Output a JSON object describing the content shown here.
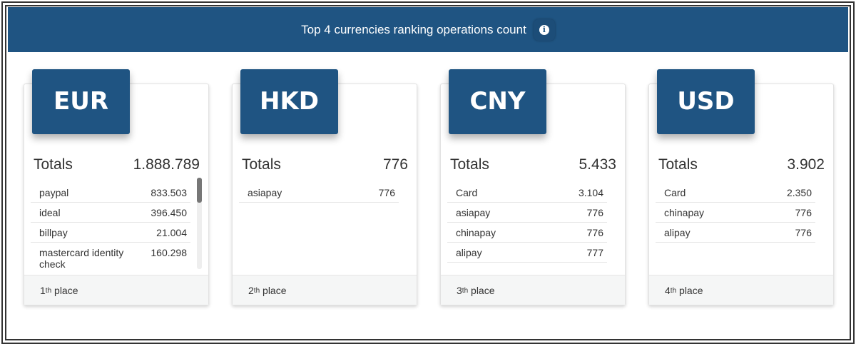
{
  "header": {
    "title": "Top 4 currencies ranking operations count",
    "info_icon": "info-circle-icon"
  },
  "colors": {
    "brand": "#1f5482",
    "footer_bg": "#f5f6f6"
  },
  "cards": [
    {
      "currency": "EUR",
      "totals_label": "Totals",
      "total": "1.888.789",
      "items": [
        {
          "name": "paypal",
          "value": "833.503"
        },
        {
          "name": "ideal",
          "value": "396.450"
        },
        {
          "name": "billpay",
          "value": "21.004"
        },
        {
          "name": "mastercard identity check",
          "value": "160.298"
        }
      ],
      "place_num": "1",
      "place_suffix": "th",
      "place_word": "place"
    },
    {
      "currency": "HKD",
      "totals_label": "Totals",
      "total": "776",
      "items": [
        {
          "name": "asiapay",
          "value": "776"
        }
      ],
      "place_num": "2",
      "place_suffix": "th",
      "place_word": "place"
    },
    {
      "currency": "CNY",
      "totals_label": "Totals",
      "total": "5.433",
      "items": [
        {
          "name": "Card",
          "value": "3.104"
        },
        {
          "name": "asiapay",
          "value": "776"
        },
        {
          "name": "chinapay",
          "value": "776"
        },
        {
          "name": "alipay",
          "value": "777"
        }
      ],
      "place_num": "3",
      "place_suffix": "th",
      "place_word": "place"
    },
    {
      "currency": "USD",
      "totals_label": "Totals",
      "total": "3.902",
      "items": [
        {
          "name": "Card",
          "value": "2.350"
        },
        {
          "name": "chinapay",
          "value": "776"
        },
        {
          "name": "alipay",
          "value": "776"
        }
      ],
      "place_num": "4",
      "place_suffix": "th",
      "place_word": "place"
    }
  ]
}
